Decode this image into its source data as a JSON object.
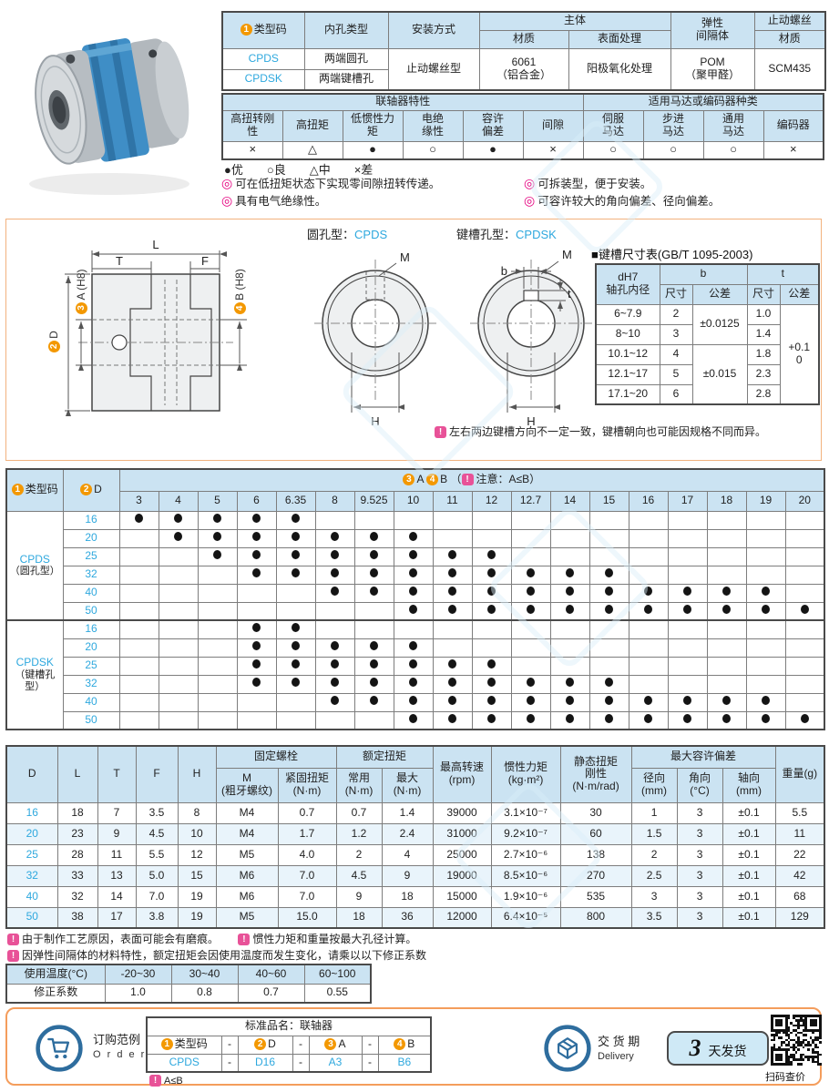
{
  "icons": {
    "feature_bullet": "◎",
    "bang": "!"
  },
  "top_table": {
    "badge": "1",
    "h_type": "类型码",
    "h_bore": "内孔类型",
    "h_mount": "安装方式",
    "h_body": "主体",
    "h_material": "材质",
    "h_surface": "表面处理",
    "h_spacer": "弹性\n间隔体",
    "h_screw": "止动螺丝",
    "h_screw_mat": "材质",
    "rows": [
      {
        "code": "CPDS",
        "bore": "两端圆孔"
      },
      {
        "code": "CPDSK",
        "bore": "两端键槽孔"
      }
    ],
    "mount": "止动螺丝型",
    "material": "6061\n（铝合金）",
    "surface": "阳极氧化处理",
    "spacer": "POM\n（聚甲醛）",
    "screw_material": "SCM435"
  },
  "characteristics": {
    "group1": "联轴器特性",
    "group2": "适用马达或编码器种类",
    "labels": [
      "高扭转刚\n性",
      "高扭矩",
      "低惯性力\n矩",
      "电绝\n缘性",
      "容许\n偏差",
      "间隙",
      "伺服\n马达",
      "步进\n马达",
      "通用\n马达",
      "编码器"
    ],
    "values": [
      "×",
      "△",
      "●",
      "○",
      "●",
      "×",
      "○",
      "○",
      "○",
      "×"
    ],
    "legend": "●优　　○良　　△中　　×差"
  },
  "features": [
    "可在低扭矩状态下实现零间隙扭转传递。",
    "具有电气绝缘性。",
    "可拆装型，便于安装。",
    "可容许较大的角向偏差、径向偏差。"
  ],
  "drawing": {
    "dim_l": "L",
    "dim_t": "T",
    "dim_f": "F",
    "badge_d": "2",
    "dim_d": "D",
    "badge_a": "3",
    "dim_a": "A (H8)",
    "badge_b": "4",
    "dim_b": "B (H8)",
    "label_m": "M",
    "label_h": "H",
    "label_b": "b",
    "label_t": "t",
    "round_title": "圆孔型：",
    "round_code": "CPDS",
    "key_title": "键槽孔型：",
    "key_code": "CPDSK",
    "keyway_table": {
      "title": "■键槽尺寸表(GB/T 1095-2003)",
      "h_bore": "dH7\n轴孔内径",
      "h_b": "b",
      "h_t": "t",
      "h_size": "尺寸",
      "h_tol": "公差",
      "rows": [
        [
          "6~7.9",
          "2",
          "1.0"
        ],
        [
          "8~10",
          "3",
          "1.4"
        ],
        [
          "10.1~12",
          "4",
          "1.8"
        ],
        [
          "12.1~17",
          "5",
          "2.3"
        ],
        [
          "17.1~20",
          "6",
          "2.8"
        ]
      ],
      "b_tol": [
        {
          "text": "±0.0125",
          "span": 2
        },
        {
          "text": "±0.015",
          "span": 3
        }
      ],
      "t_tol": {
        "text": "+0.1\n0",
        "span": 5
      }
    },
    "warning": "左右两边键槽方向不一定一致，键槽朝向也可能因规格不同而异。"
  },
  "matrix": {
    "badge_type": "1",
    "h_type": "类型码",
    "badge_d": "2",
    "h_d": "D",
    "badge_a": "3",
    "h_a": "A",
    "badge_b": "4",
    "h_b": "B",
    "note_pre": "（",
    "note": "注意：A≤B",
    "note_post": "）",
    "columns": [
      "3",
      "4",
      "5",
      "6",
      "6.35",
      "8",
      "9.525",
      "10",
      "11",
      "12",
      "12.7",
      "14",
      "15",
      "16",
      "17",
      "18",
      "19",
      "20"
    ],
    "groups": [
      {
        "code": "CPDS",
        "sub": "（圆孔型）",
        "rows": [
          {
            "d": "16",
            "dots": [
              "3",
              "4",
              "5",
              "6",
              "6.35"
            ]
          },
          {
            "d": "20",
            "dots": [
              "4",
              "5",
              "6",
              "6.35",
              "8",
              "9.525",
              "10"
            ]
          },
          {
            "d": "25",
            "dots": [
              "5",
              "6",
              "6.35",
              "8",
              "9.525",
              "10",
              "11",
              "12"
            ]
          },
          {
            "d": "32",
            "dots": [
              "6",
              "6.35",
              "8",
              "9.525",
              "10",
              "11",
              "12",
              "12.7",
              "14",
              "15"
            ]
          },
          {
            "d": "40",
            "dots": [
              "8",
              "9.525",
              "10",
              "11",
              "12",
              "12.7",
              "14",
              "15",
              "16",
              "17",
              "18",
              "19"
            ]
          },
          {
            "d": "50",
            "dots": [
              "10",
              "11",
              "12",
              "12.7",
              "14",
              "15",
              "16",
              "17",
              "18",
              "19",
              "20"
            ]
          }
        ]
      },
      {
        "code": "CPDSK",
        "sub": "（键槽孔型）",
        "rows": [
          {
            "d": "16",
            "dots": [
              "6",
              "6.35"
            ]
          },
          {
            "d": "20",
            "dots": [
              "6",
              "6.35",
              "8",
              "9.525",
              "10"
            ]
          },
          {
            "d": "25",
            "dots": [
              "6",
              "6.35",
              "8",
              "9.525",
              "10",
              "11",
              "12"
            ]
          },
          {
            "d": "32",
            "dots": [
              "6",
              "6.35",
              "8",
              "9.525",
              "10",
              "11",
              "12",
              "12.7",
              "14",
              "15"
            ]
          },
          {
            "d": "40",
            "dots": [
              "8",
              "9.525",
              "10",
              "11",
              "12",
              "12.7",
              "14",
              "15",
              "16",
              "17",
              "18",
              "19"
            ]
          },
          {
            "d": "50",
            "dots": [
              "10",
              "11",
              "12",
              "12.7",
              "14",
              "15",
              "16",
              "17",
              "18",
              "19",
              "20"
            ]
          }
        ]
      }
    ]
  },
  "spec": {
    "h_d": "D",
    "h_l": "L",
    "h_t": "T",
    "h_f": "F",
    "h_h": "H",
    "h_bolt": "固定螺栓",
    "h_bolt_m": "M\n(粗牙螺纹)",
    "h_bolt_tq": "紧固扭矩\n(N·m)",
    "h_rated": "额定扭矩",
    "h_rated_n": "常用\n(N·m)",
    "h_rated_m": "最大\n(N·m)",
    "h_rpm": "最高转速\n(rpm)",
    "h_inertia": "惯性力矩\n(kg·m²)",
    "h_stiff": "静态扭矩\n刚性\n(N·m/rad)",
    "h_dev": "最大容许偏差",
    "h_dev_r": "径向\n(mm)",
    "h_dev_a": "角向\n(°C)",
    "h_dev_x": "轴向\n(mm)",
    "h_weight": "重量(g)",
    "rows": [
      [
        "16",
        "18",
        "7",
        "3.5",
        "8",
        "M4",
        "0.7",
        "0.7",
        "1.4",
        "39000",
        "3.1×10⁻⁷",
        "30",
        "1",
        "3",
        "±0.1",
        "5.5"
      ],
      [
        "20",
        "23",
        "9",
        "4.5",
        "10",
        "M4",
        "1.7",
        "1.2",
        "2.4",
        "31000",
        "9.2×10⁻⁷",
        "60",
        "1.5",
        "3",
        "±0.1",
        "11"
      ],
      [
        "25",
        "28",
        "11",
        "5.5",
        "12",
        "M5",
        "4.0",
        "2",
        "4",
        "25000",
        "2.7×10⁻⁶",
        "138",
        "2",
        "3",
        "±0.1",
        "22"
      ],
      [
        "32",
        "33",
        "13",
        "5.0",
        "15",
        "M6",
        "7.0",
        "4.5",
        "9",
        "19000",
        "8.5×10⁻⁶",
        "270",
        "2.5",
        "3",
        "±0.1",
        "42"
      ],
      [
        "40",
        "32",
        "14",
        "7.0",
        "19",
        "M6",
        "7.0",
        "9",
        "18",
        "15000",
        "1.9×10⁻⁶",
        "535",
        "3",
        "3",
        "±0.1",
        "68"
      ],
      [
        "50",
        "38",
        "17",
        "3.8",
        "19",
        "M5",
        "15.0",
        "18",
        "36",
        "12000",
        "6.4×10⁻⁵",
        "800",
        "3.5",
        "3",
        "±0.1",
        "129"
      ]
    ]
  },
  "notes": [
    "由于制作工艺原因，表面可能会有磨痕。",
    "惯性力矩和重量按最大孔径计算。",
    "因弹性间隔体的材料特性，额定扭矩会因使用温度而发生变化，请乘以以下修正系数"
  ],
  "temp_table": {
    "h_temp": "使用温度(°C)",
    "h_factor": "修正系数",
    "cols": [
      "-20~30",
      "30~40",
      "40~60",
      "60~100"
    ],
    "factors": [
      "1.0",
      "0.8",
      "0.7",
      "0.55"
    ]
  },
  "order": {
    "title_cn": "订购范例",
    "title_en": "O r d e r",
    "std_name": "标准品名：联轴器",
    "badges": [
      "1",
      "2",
      "3",
      "4"
    ],
    "cols": [
      "类型码",
      "D",
      "A",
      "B"
    ],
    "sep": "-",
    "example": [
      "CPDS",
      "D16",
      "A3",
      "B6"
    ],
    "note": "A≤B",
    "delivery_cn": "交 货 期",
    "delivery_en": "Delivery",
    "delivery_days": "3",
    "delivery_suffix": "天发货",
    "qr_label": "扫码查价"
  }
}
